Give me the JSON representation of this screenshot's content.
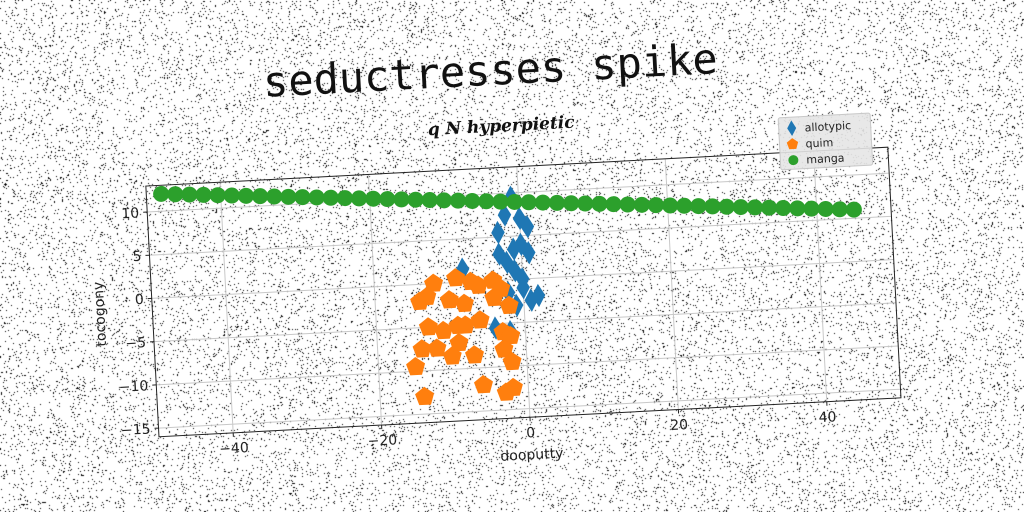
{
  "colors": {
    "allotypic": "#1f77b4",
    "quim": "#ff7f0e",
    "manga": "#2ca02c",
    "grid": "#c8c8c8"
  },
  "chart_data": {
    "type": "scatter",
    "title": "seductresses spike",
    "subtitle": "q N hyperpietic",
    "xlabel": "dooputty",
    "ylabel": "tocogony",
    "xlim": [
      -50,
      50
    ],
    "ylim": [
      -16,
      13
    ],
    "xticks": [
      -40,
      -20,
      0,
      20,
      40
    ],
    "yticks": [
      -15,
      -10,
      -5,
      0,
      5,
      10
    ],
    "grid": true,
    "legend": {
      "position": "top-right",
      "entries": [
        "allotypic",
        "quim",
        "manga"
      ]
    },
    "series": [
      {
        "name": "allotypic",
        "marker": "diamond",
        "x": [
          -1,
          -2,
          0,
          -3,
          1,
          0,
          -1,
          -3,
          -2,
          1,
          -1,
          0,
          -8,
          0,
          -2,
          1,
          2,
          -1,
          -4,
          -2
        ],
        "y": [
          9.5,
          7.5,
          7,
          5.5,
          6,
          4,
          3.5,
          3,
          2,
          3,
          1,
          0,
          1.5,
          -1,
          -1.5,
          -2.5,
          -2,
          -3,
          -5.5,
          -6
        ]
      },
      {
        "name": "quim",
        "marker": "pentagon",
        "x": [
          -12,
          -9,
          -7,
          -6,
          -4,
          -3,
          -13,
          -10,
          -8,
          -4,
          -2,
          -14,
          -13,
          -11,
          -9,
          -8,
          -6,
          -3,
          -2,
          -14,
          -12,
          -9,
          -10,
          -7,
          -3,
          -2,
          -15,
          -6,
          -2,
          -14,
          -3
        ],
        "y": [
          0,
          0.5,
          0,
          -0.5,
          0,
          -1,
          -1.5,
          -2,
          -2.5,
          -2,
          -3,
          -2,
          -5,
          -5.5,
          -5,
          -5,
          -4.5,
          -6,
          -6.5,
          -7.5,
          -7.5,
          -7,
          -8.5,
          -8.5,
          -8,
          -9.5,
          -9.5,
          -12,
          -12.5,
          -13,
          -13
        ]
      },
      {
        "name": "manga",
        "marker": "circle",
        "linear": {
          "x_from": -48,
          "x_to": 45,
          "y_from": 12,
          "y_to": 6,
          "count": 50
        }
      }
    ]
  }
}
